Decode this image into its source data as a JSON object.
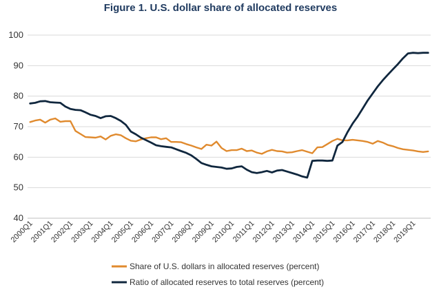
{
  "chart_data": {
    "type": "line",
    "title": "Figure 1. U.S. dollar share of allocated reserves",
    "title_color": "#1f3a5f",
    "xlabel": "",
    "ylabel": "",
    "ylim": [
      40,
      100
    ],
    "yticks": [
      40,
      50,
      60,
      70,
      80,
      90,
      100
    ],
    "grid": true,
    "legend_position": "bottom-center",
    "x_tick_labels": [
      "2000Q1",
      "2001Q1",
      "2002Q1",
      "2003Q1",
      "2004Q1",
      "2005Q1",
      "2006Q1",
      "2007Q1",
      "2008Q1",
      "2009Q1",
      "2010Q1",
      "2011Q1",
      "2012Q1",
      "2013Q1",
      "2014Q1",
      "2015Q1",
      "2016Q1",
      "2017Q1",
      "2018Q1",
      "2019Q1"
    ],
    "series": [
      {
        "name": "Share of U.S. dollars in allocated reserves (percent)",
        "color": "#e08a2e",
        "values": [
          71.5,
          72.0,
          72.3,
          71.3,
          72.3,
          72.7,
          71.6,
          71.8,
          71.8,
          68.6,
          67.6,
          66.6,
          66.5,
          66.4,
          66.8,
          65.8,
          67.0,
          67.5,
          67.2,
          66.2,
          65.4,
          65.2,
          65.8,
          66.2,
          66.5,
          66.5,
          65.9,
          66.2,
          65.0,
          65.0,
          64.9,
          64.3,
          63.8,
          63.2,
          62.7,
          64.1,
          63.8,
          65.1,
          63.0,
          62.0,
          62.3,
          62.3,
          62.8,
          62.0,
          62.2,
          61.5,
          61.1,
          61.9,
          62.4,
          62.0,
          61.9,
          61.5,
          61.6,
          62.0,
          62.3,
          61.8,
          61.3,
          63.2,
          63.3,
          64.3,
          65.3,
          66.0,
          65.5,
          65.5,
          65.7,
          65.5,
          65.3,
          65.0,
          64.4,
          65.3,
          64.8,
          64.0,
          63.6,
          63.0,
          62.6,
          62.4,
          62.2,
          61.9,
          61.7,
          61.9
        ]
      },
      {
        "name": "Ratio of allocated reserves to total reserves (percent)",
        "color": "#10273e",
        "values": [
          77.6,
          77.8,
          78.3,
          78.4,
          78.0,
          77.9,
          77.8,
          76.6,
          75.8,
          75.5,
          75.4,
          74.7,
          73.9,
          73.5,
          72.8,
          73.4,
          73.5,
          72.8,
          71.9,
          70.6,
          68.4,
          67.5,
          66.4,
          65.6,
          64.8,
          63.9,
          63.6,
          63.4,
          63.2,
          62.6,
          62.0,
          61.4,
          60.6,
          59.4,
          58.1,
          57.5,
          57.0,
          56.8,
          56.6,
          56.2,
          56.3,
          56.8,
          57.0,
          55.9,
          55.1,
          54.8,
          55.1,
          55.5,
          55.0,
          55.6,
          55.8,
          55.3,
          54.8,
          54.3,
          53.7,
          53.3,
          58.8,
          58.9,
          58.9,
          58.8,
          58.9,
          63.8,
          65.0,
          68.2,
          71.0,
          73.3,
          75.9,
          78.6,
          80.9,
          83.2,
          85.2,
          87.0,
          88.8,
          90.5,
          92.4,
          94.0,
          94.2,
          94.1,
          94.2,
          94.2
        ]
      }
    ]
  }
}
